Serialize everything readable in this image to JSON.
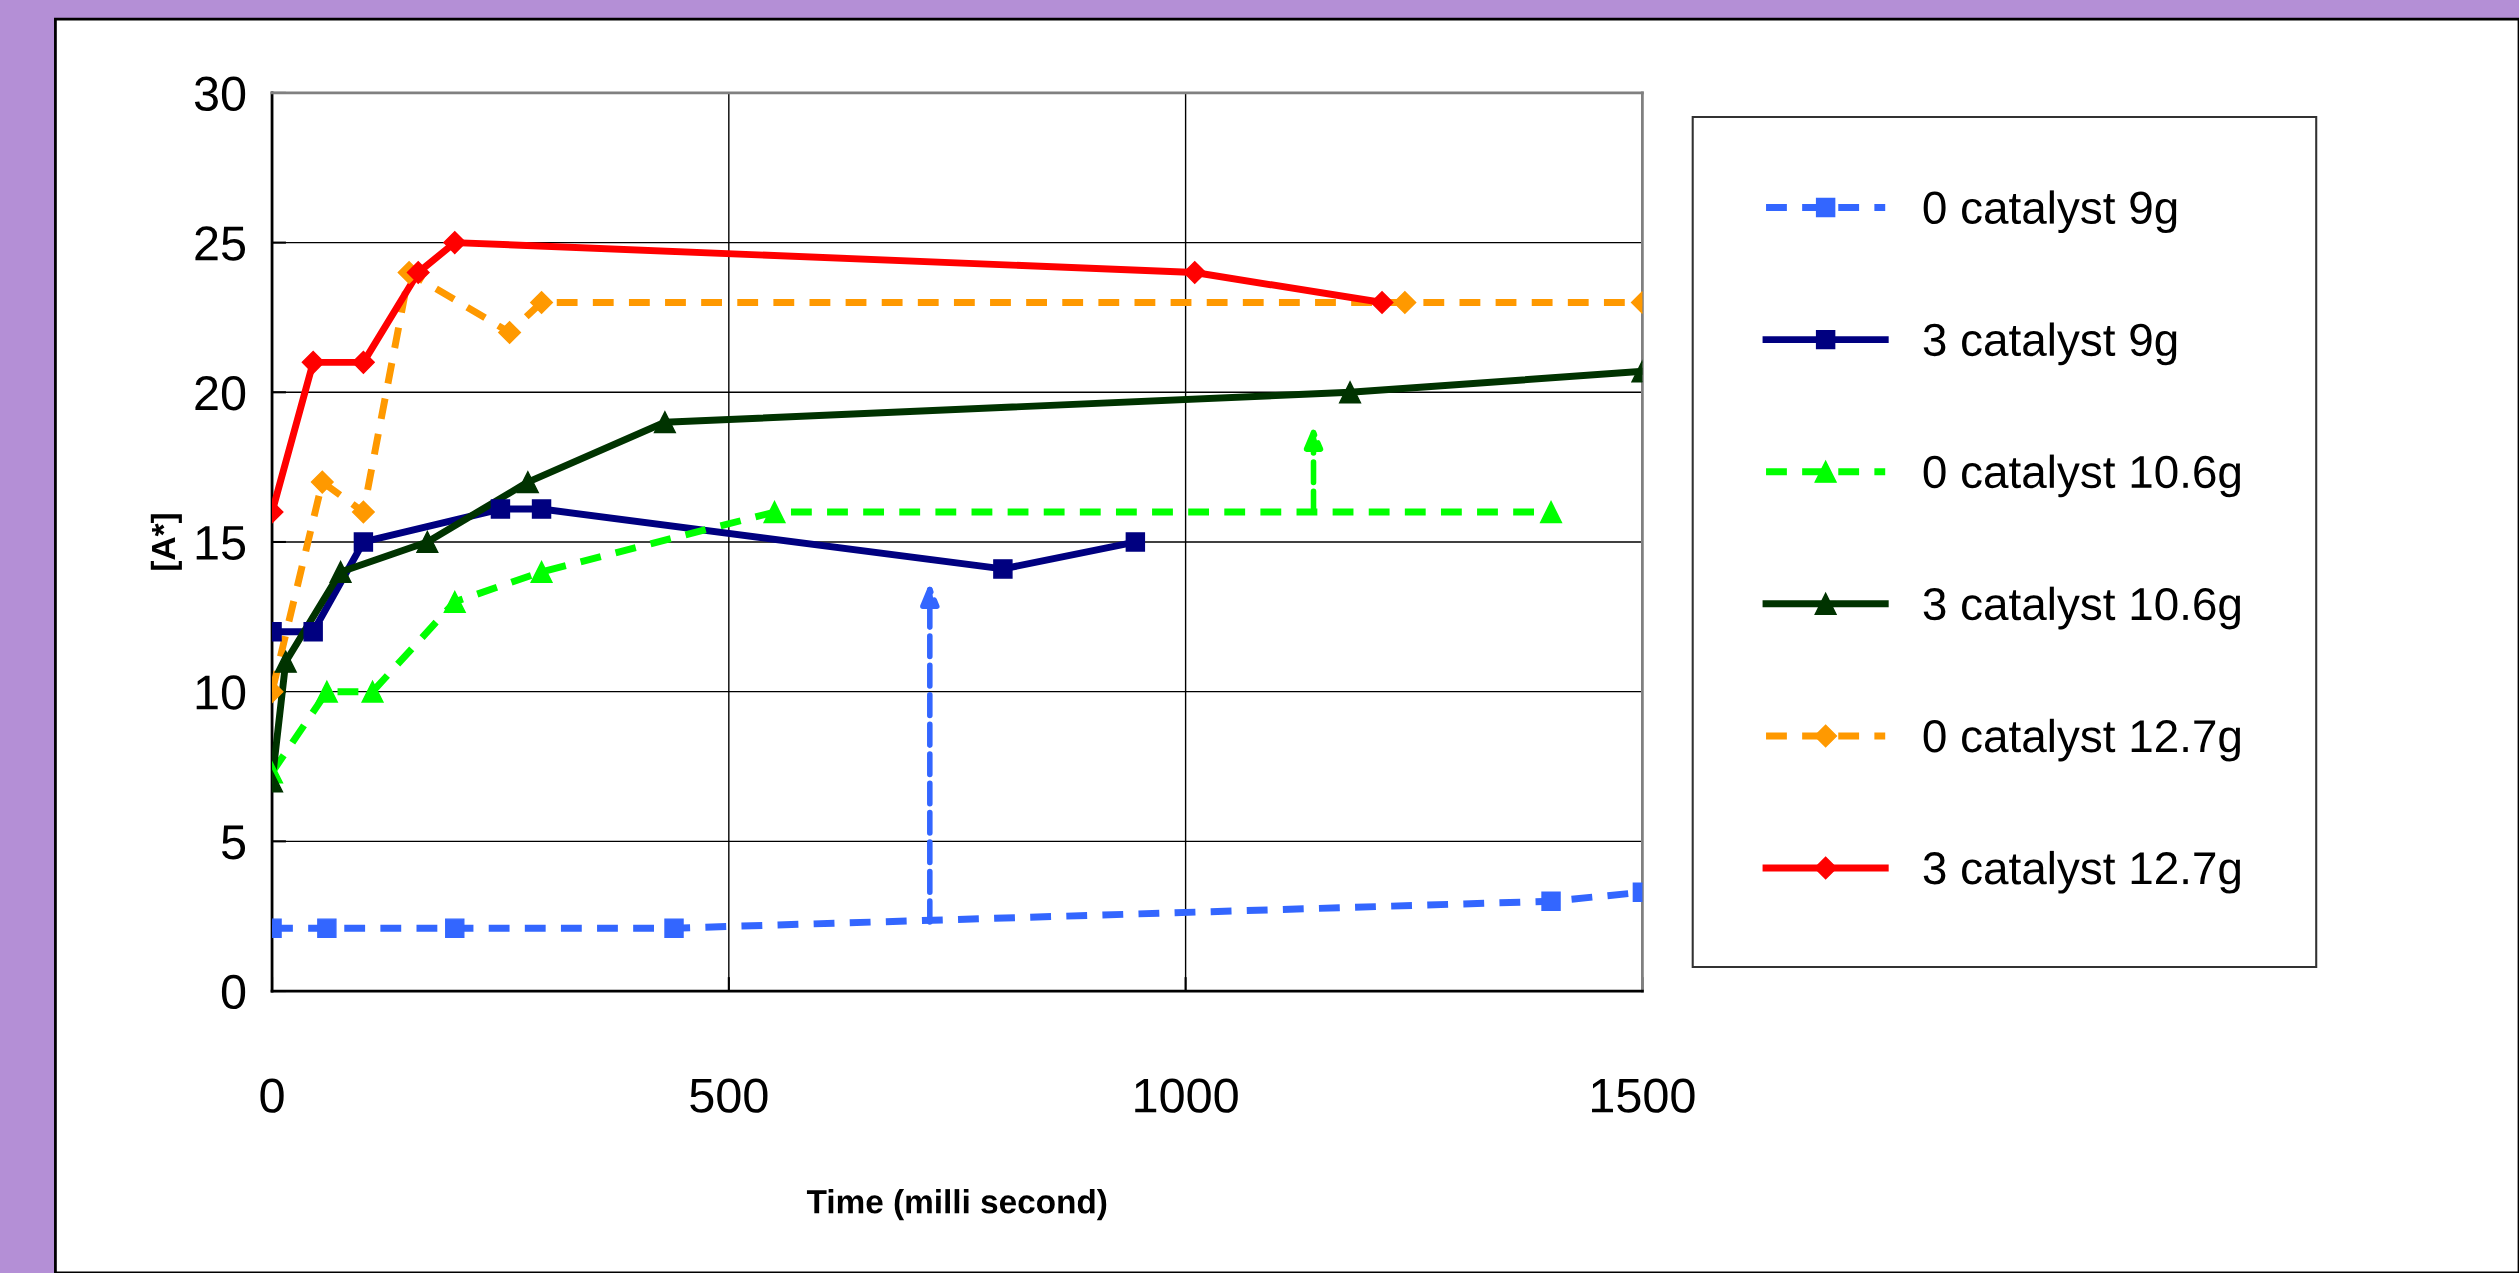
{
  "chart_data": {
    "type": "line",
    "xlabel": "Time (milli second)",
    "ylabel": "[A*]",
    "xlim": [
      0,
      1500
    ],
    "xticks": [
      0,
      500,
      1000,
      1500
    ],
    "ylim": [
      0,
      30
    ],
    "yticks": [
      0,
      5,
      10,
      15,
      20,
      25,
      30
    ],
    "grid": true,
    "legend": "right",
    "series": [
      {
        "name": "0 catalyst 9g",
        "color": "#3366ff",
        "marker": "square",
        "line_style": "dashed",
        "x": [
          0,
          60,
          200,
          440,
          1400,
          1500
        ],
        "values": [
          2.1,
          2.1,
          2.1,
          2.1,
          3.0,
          3.3
        ]
      },
      {
        "name": "3 catalyst 9g",
        "color": "#000080",
        "marker": "square",
        "line_style": "solid",
        "x": [
          0,
          45,
          100,
          250,
          295,
          800,
          945
        ],
        "values": [
          12,
          12,
          15,
          16.1,
          16.1,
          14.1,
          15
        ]
      },
      {
        "name": "0 catalyst 10.6g",
        "color": "#00ff00",
        "marker": "triangle",
        "line_style": "dashed",
        "x": [
          0,
          60,
          110,
          200,
          295,
          550,
          1400
        ],
        "values": [
          7.3,
          10,
          10,
          13,
          14,
          16,
          16
        ]
      },
      {
        "name": "3 catalyst 10.6g",
        "color": "#003300",
        "marker": "triangle",
        "line_style": "solid",
        "x": [
          0,
          15,
          75,
          170,
          280,
          430,
          1180,
          1500
        ],
        "values": [
          7,
          11,
          14,
          15,
          17,
          19,
          20,
          20.7
        ]
      },
      {
        "name": "0 catalyst 12.7g",
        "color": "#ff9900",
        "marker": "diamond",
        "line_style": "dashed",
        "x": [
          0,
          55,
          100,
          150,
          260,
          295,
          1240,
          1500
        ],
        "values": [
          10,
          17,
          16,
          24,
          22,
          23,
          23,
          23
        ]
      },
      {
        "name": "3 catalyst 12.7g",
        "color": "#ff0000",
        "marker": "diamond",
        "line_style": "solid",
        "x": [
          0,
          45,
          100,
          160,
          200,
          1010,
          1215
        ],
        "values": [
          16,
          21,
          21,
          24,
          25,
          24,
          23
        ]
      }
    ]
  }
}
